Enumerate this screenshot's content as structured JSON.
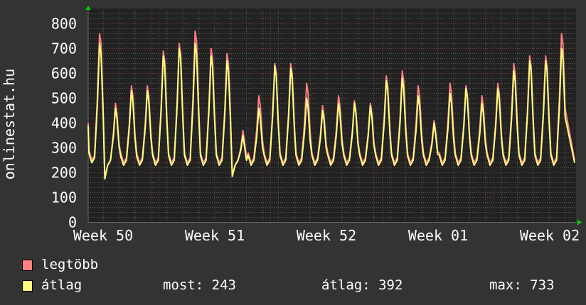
{
  "chart_data": {
    "type": "line",
    "ylabel": "onlinestat.hu",
    "ylim": [
      0,
      800
    ],
    "y_ticks": [
      "0",
      "100",
      "200",
      "300",
      "400",
      "500",
      "600",
      "700",
      "800"
    ],
    "x_ticks": [
      "Week 50",
      "Week 51",
      "Week 52",
      "Week 01",
      "Week 02"
    ],
    "grid": true,
    "sample_unit": "day",
    "series": [
      {
        "name": "legtöbb",
        "color": "#ff7f7f",
        "peaks": [
          760,
          480,
          550,
          550,
          690,
          720,
          770,
          700,
          680,
          370,
          510,
          640,
          640,
          560,
          470,
          510,
          490,
          480,
          590,
          610,
          550,
          410,
          560,
          550,
          510,
          560,
          640,
          670,
          670,
          760
        ],
        "troughs": [
          250,
          140,
          240,
          240,
          240,
          240,
          240,
          240,
          240,
          150,
          240,
          240,
          240,
          240,
          240,
          240,
          240,
          240,
          240,
          240,
          240,
          240,
          240,
          240,
          240,
          240,
          240,
          240,
          240,
          240
        ]
      },
      {
        "name": "átlag",
        "color": "#ffff7f",
        "peaks": [
          720,
          460,
          530,
          530,
          670,
          700,
          720,
          670,
          650,
          350,
          460,
          630,
          620,
          500,
          450,
          480,
          480,
          470,
          570,
          580,
          510,
          400,
          520,
          540,
          480,
          540,
          610,
          650,
          650,
          700
        ],
        "troughs": [
          240,
          135,
          225,
          225,
          230,
          230,
          230,
          230,
          230,
          145,
          230,
          230,
          230,
          230,
          230,
          230,
          230,
          230,
          230,
          230,
          230,
          230,
          230,
          230,
          230,
          230,
          230,
          230,
          230,
          230
        ]
      }
    ]
  },
  "legend": {
    "max_label": "legtöbb",
    "avg_label": "átlag",
    "most": "most: 243",
    "atlag": "átlag: 392",
    "max": "max: 733"
  }
}
